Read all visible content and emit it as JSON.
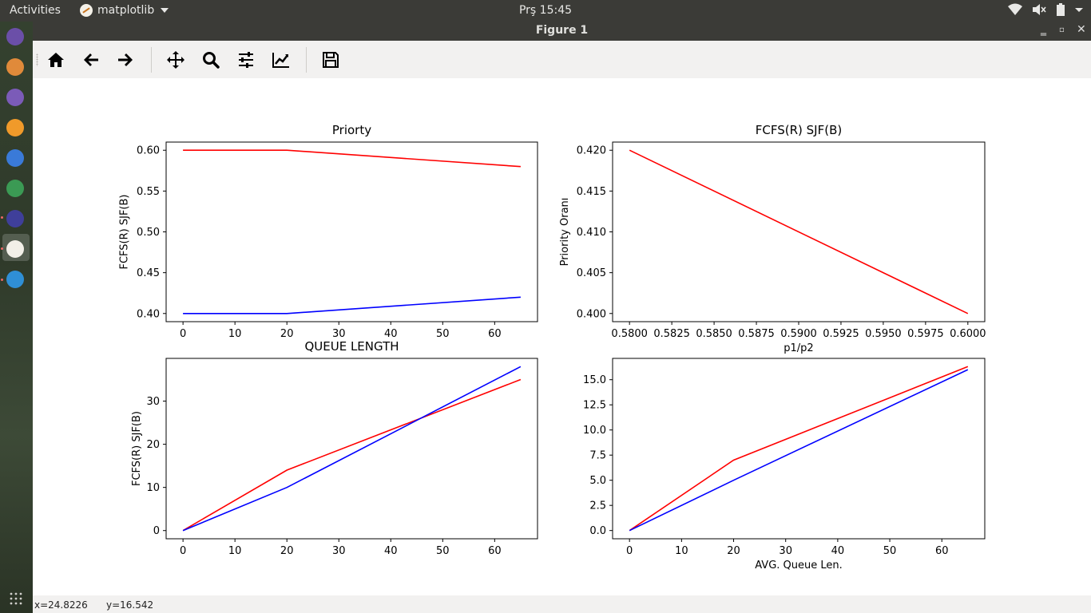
{
  "topbar": {
    "activities": "Activities",
    "app_name": "matplotlib",
    "clock": "Prş 15:45"
  },
  "launcher": {
    "items": [
      {
        "name": "files-icon",
        "color": "#6b4fa8"
      },
      {
        "name": "media-player-icon",
        "color": "#e08a3a"
      },
      {
        "name": "text-editor-icon",
        "color": "#7b5bb8"
      },
      {
        "name": "vlc-icon",
        "color": "#f09a2a"
      },
      {
        "name": "opera-icon",
        "color": "#3a7ad8"
      },
      {
        "name": "android-studio-icon",
        "color": "#3b9a54"
      },
      {
        "name": "vscode-icon",
        "color": "#3f3f9a"
      },
      {
        "name": "matplotlib-icon",
        "color": "#f2efe8"
      },
      {
        "name": "libreoffice-writer-icon",
        "color": "#2f8fd6"
      }
    ]
  },
  "window": {
    "title": "Figure 1"
  },
  "toolbar": {
    "buttons": [
      "home-icon",
      "back-icon",
      "forward-icon",
      "pan-icon",
      "zoom-icon",
      "configure-subplots-icon",
      "edit-axis-icon",
      "save-icon"
    ]
  },
  "status": {
    "x": "x=24.8226",
    "y": "y=16.542"
  },
  "chart_data": [
    {
      "type": "line",
      "title": "Priorty",
      "xlabel": "",
      "ylabel": "FCFS(R) SJF(B)",
      "xlim": [
        -3.25,
        68.25
      ],
      "ylim": [
        0.39,
        0.61
      ],
      "xticks": [
        "0",
        "10",
        "20",
        "30",
        "40",
        "50",
        "60"
      ],
      "yticks": [
        "0.40",
        "0.45",
        "0.50",
        "0.55",
        "0.60"
      ],
      "series": [
        {
          "color": "#ff0000",
          "x": [
            0,
            20,
            65
          ],
          "y": [
            0.6,
            0.6,
            0.58
          ]
        },
        {
          "color": "#0000ff",
          "x": [
            0,
            20,
            65
          ],
          "y": [
            0.4,
            0.4,
            0.42
          ]
        }
      ]
    },
    {
      "type": "line",
      "title": "FCFS(R) SJF(B)",
      "xlabel": "p1/p2",
      "ylabel": "Priority Oranı",
      "xlim": [
        0.579,
        0.601
      ],
      "ylim": [
        0.399,
        0.421
      ],
      "xticks": [
        "0.5800",
        "0.5825",
        "0.5850",
        "0.5875",
        "0.5900",
        "0.5925",
        "0.5950",
        "0.5975",
        "0.6000"
      ],
      "yticks": [
        "0.400",
        "0.405",
        "0.410",
        "0.415",
        "0.420"
      ],
      "series": [
        {
          "color": "#ff0000",
          "x": [
            0.58,
            0.6
          ],
          "y": [
            0.42,
            0.4
          ]
        }
      ]
    },
    {
      "type": "line",
      "title": "QUEUE LENGTH",
      "xlabel": "",
      "ylabel": "FCFS(R) SJF(B)",
      "xlim": [
        -3.25,
        68.25
      ],
      "ylim": [
        -1.9,
        39.9
      ],
      "xticks": [
        "0",
        "10",
        "20",
        "30",
        "40",
        "50",
        "60"
      ],
      "yticks": [
        "0",
        "10",
        "20",
        "30"
      ],
      "series": [
        {
          "color": "#ff0000",
          "x": [
            0,
            20,
            65
          ],
          "y": [
            0,
            14,
            35
          ]
        },
        {
          "color": "#0000ff",
          "x": [
            0,
            20,
            65
          ],
          "y": [
            0,
            10,
            38
          ]
        }
      ]
    },
    {
      "type": "line",
      "title": "",
      "xlabel": "AVG. Queue Len.",
      "ylabel": "",
      "xlim": [
        -3.25,
        68.25
      ],
      "ylim": [
        -0.82,
        17.12
      ],
      "xticks": [
        "0",
        "10",
        "20",
        "30",
        "40",
        "50",
        "60"
      ],
      "yticks": [
        "0.0",
        "2.5",
        "5.0",
        "7.5",
        "10.0",
        "12.5",
        "15.0"
      ],
      "series": [
        {
          "color": "#ff0000",
          "x": [
            0,
            20,
            65
          ],
          "y": [
            0,
            7,
            16.3
          ]
        },
        {
          "color": "#0000ff",
          "x": [
            0,
            20,
            65
          ],
          "y": [
            0,
            5,
            16
          ]
        }
      ]
    }
  ]
}
